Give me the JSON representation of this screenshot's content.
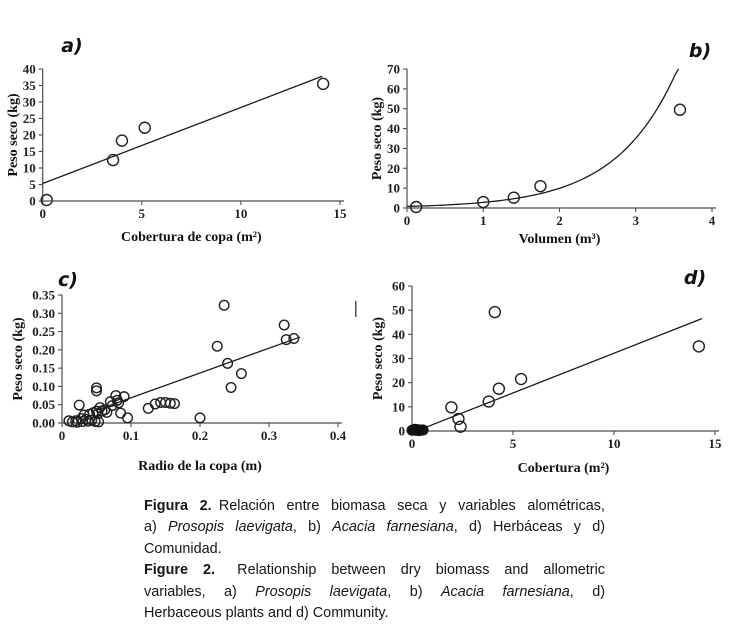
{
  "page": {
    "background": "#ffffff",
    "ink": "#1a1a1a",
    "axis_color": "#4d4d4d"
  },
  "stray_mark_glyph": "|",
  "chart_data": [
    {
      "panel_label": "a)",
      "type": "scatter",
      "xlabel": "Cobertura de copa (m²)",
      "ylabel": "Peso seco (kg)",
      "xlim": [
        0,
        15
      ],
      "ylim": [
        0,
        40
      ],
      "xticks": [
        "0",
        "5",
        "10",
        "15"
      ],
      "yticks": [
        "0",
        "5",
        "10",
        "15",
        "20",
        "25",
        "30",
        "35",
        "40"
      ],
      "points": [
        [
          0.2,
          0.3
        ],
        [
          3.55,
          12.4
        ],
        [
          4.0,
          18.3
        ],
        [
          5.15,
          22.2
        ],
        [
          14.15,
          35.5
        ]
      ],
      "trend": {
        "type": "linear",
        "x1": 0,
        "y1": 5.3,
        "x2": 14.1,
        "y2": 37.8
      }
    },
    {
      "panel_label": "b)",
      "type": "scatter",
      "xlabel": "Volumen (m³)",
      "ylabel": "Peso seco (kg)",
      "xlim": [
        0,
        4
      ],
      "ylim": [
        0,
        70
      ],
      "xticks": [
        "0",
        "1",
        "2",
        "3",
        "4"
      ],
      "yticks": [
        "0",
        "10",
        "20",
        "30",
        "40",
        "50",
        "60",
        "70"
      ],
      "points": [
        [
          0.12,
          0.5
        ],
        [
          1.0,
          3.0
        ],
        [
          1.4,
          5.2
        ],
        [
          1.75,
          11.0
        ],
        [
          3.58,
          49.5
        ]
      ],
      "trend": {
        "type": "exp",
        "a": 0.8,
        "b": 1.26,
        "x1": 0,
        "x2": 3.56
      }
    },
    {
      "panel_label": "c)",
      "type": "scatter",
      "xlabel": "Radio de la copa (m)",
      "ylabel": "Peso seco (kg)",
      "xlim": [
        0,
        0.4
      ],
      "ylim": [
        0,
        0.35
      ],
      "xticks": [
        "0",
        "0.1",
        "0.2",
        "0.3",
        "0.4"
      ],
      "yticks": [
        "0.00",
        "0.05",
        "0.10",
        "0.15",
        "0.20",
        "0.25",
        "0.30",
        "0.35"
      ],
      "points": [
        [
          0.01,
          0.006
        ],
        [
          0.015,
          0.003
        ],
        [
          0.02,
          0.006
        ],
        [
          0.022,
          0.002
        ],
        [
          0.025,
          0.049
        ],
        [
          0.028,
          0.012
        ],
        [
          0.03,
          0.004
        ],
        [
          0.032,
          0.022
        ],
        [
          0.035,
          0.01
        ],
        [
          0.038,
          0.005
        ],
        [
          0.04,
          0.024
        ],
        [
          0.043,
          0.008
        ],
        [
          0.045,
          0.028
        ],
        [
          0.048,
          0.004
        ],
        [
          0.05,
          0.096
        ],
        [
          0.05,
          0.088
        ],
        [
          0.05,
          0.032
        ],
        [
          0.052,
          0.026
        ],
        [
          0.053,
          0.003
        ],
        [
          0.055,
          0.042
        ],
        [
          0.058,
          0.033
        ],
        [
          0.062,
          0.036
        ],
        [
          0.065,
          0.029
        ],
        [
          0.07,
          0.058
        ],
        [
          0.073,
          0.048
        ],
        [
          0.078,
          0.075
        ],
        [
          0.08,
          0.062
        ],
        [
          0.082,
          0.055
        ],
        [
          0.085,
          0.027
        ],
        [
          0.09,
          0.072
        ],
        [
          0.095,
          0.014
        ],
        [
          0.125,
          0.04
        ],
        [
          0.135,
          0.052
        ],
        [
          0.143,
          0.056
        ],
        [
          0.15,
          0.056
        ],
        [
          0.157,
          0.054
        ],
        [
          0.163,
          0.053
        ],
        [
          0.2,
          0.014
        ],
        [
          0.225,
          0.21
        ],
        [
          0.235,
          0.322
        ],
        [
          0.24,
          0.163
        ],
        [
          0.245,
          0.097
        ],
        [
          0.26,
          0.135
        ],
        [
          0.322,
          0.268
        ],
        [
          0.325,
          0.228
        ],
        [
          0.336,
          0.231
        ]
      ],
      "trend": {
        "type": "linear",
        "x1": 0.05,
        "y1": 0.035,
        "x2": 0.345,
        "y2": 0.235
      }
    },
    {
      "panel_label": "d)",
      "type": "scatter",
      "xlabel": "Cobertura (m²)",
      "ylabel": "Peso seco (kg)",
      "xlim": [
        0,
        15
      ],
      "ylim": [
        0,
        60
      ],
      "xticks": [
        "0",
        "5",
        "10",
        "15"
      ],
      "yticks": [
        "0",
        "10",
        "20",
        "30",
        "40",
        "50",
        "60"
      ],
      "points": [
        [
          1.95,
          9.8
        ],
        [
          2.3,
          5.0
        ],
        [
          2.4,
          1.8
        ],
        [
          3.8,
          12.2
        ],
        [
          4.1,
          49.2
        ],
        [
          4.3,
          17.5
        ],
        [
          5.4,
          21.5
        ],
        [
          14.2,
          35.0
        ]
      ],
      "filled_points": [
        [
          0.0,
          0.3
        ],
        [
          0.1,
          0.5
        ],
        [
          0.2,
          0.25
        ],
        [
          0.3,
          0.5
        ],
        [
          0.4,
          0.3
        ],
        [
          0.5,
          0.45
        ],
        [
          0.15,
          0.7
        ],
        [
          0.35,
          0.15
        ],
        [
          0.55,
          0.4
        ]
      ],
      "trend": {
        "type": "linear",
        "x1": 0.4,
        "y1": 0.6,
        "x2": 14.35,
        "y2": 46.5
      }
    }
  ],
  "caption": {
    "lines": [
      {
        "justify": true,
        "segments": [
          {
            "t": "Figura 2.",
            "b": 1
          },
          {
            "t": " Relación entre biomasa seca y variables alométricas,"
          }
        ]
      },
      {
        "justify": true,
        "segments": [
          {
            "t": "a) "
          },
          {
            "t": "Prosopis laevigata",
            "i": 1
          },
          {
            "t": ", b) "
          },
          {
            "t": "Acacia farnesiana",
            "i": 1
          },
          {
            "t": ", d) Herbáceas y d)"
          }
        ]
      },
      {
        "justify": false,
        "segments": [
          {
            "t": "Comunidad."
          }
        ]
      },
      {
        "justify": true,
        "segments": [
          {
            "t": "Figure 2.",
            "b": 1
          },
          {
            "t": "  Relationship between dry biomass and allometric"
          }
        ]
      },
      {
        "justify": true,
        "segments": [
          {
            "t": "variables, a) "
          },
          {
            "t": "Prosopis laevigata",
            "i": 1
          },
          {
            "t": ", b) "
          },
          {
            "t": "Acacia farnesiana",
            "i": 1
          },
          {
            "t": ", d)"
          }
        ]
      },
      {
        "justify": false,
        "segments": [
          {
            "t": "Herbaceous plants and d) Community."
          }
        ]
      }
    ]
  }
}
